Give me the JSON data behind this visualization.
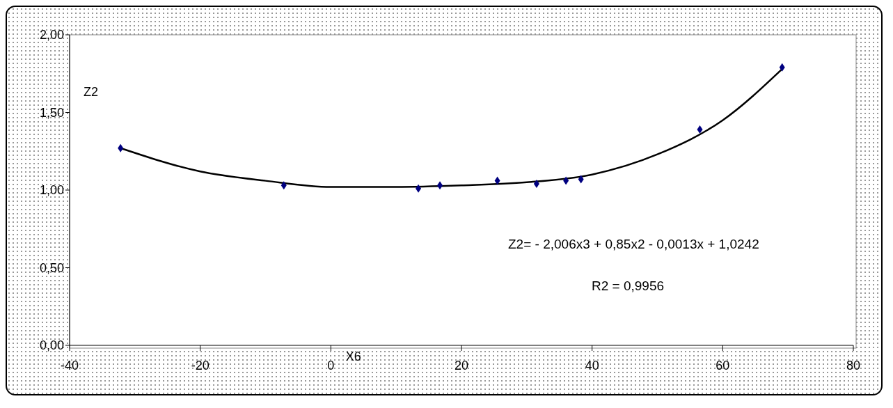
{
  "chart_data": {
    "type": "scatter",
    "xlabel": "X6",
    "ylabel": "Z2",
    "xlim": [
      -40,
      80
    ],
    "xticks": [
      -40,
      -20,
      0,
      20,
      40,
      60,
      80
    ],
    "ylim": [
      0,
      2
    ],
    "yticks": [
      {
        "value": 0,
        "label": "0,00"
      },
      {
        "value": 0.5,
        "label": "0,50"
      },
      {
        "value": 1,
        "label": "1,00"
      },
      {
        "value": 1.5,
        "label": "1,50"
      },
      {
        "value": 2,
        "label": "2,00"
      }
    ],
    "grid": false,
    "legend": false,
    "series": [
      {
        "color": "#000080",
        "marker": "diamond",
        "x": [
          -32.2,
          -7.2,
          13.4,
          16.7,
          25.5,
          31.5,
          36.0,
          38.3,
          56.5,
          69.1
        ],
        "values": [
          1.27,
          1.03,
          1.01,
          1.03,
          1.06,
          1.04,
          1.06,
          1.07,
          1.39,
          1.79
        ]
      },
      {
        "type": "line",
        "color": "#000000",
        "marker": "none",
        "line_style": "solid",
        "x": [
          -32.2,
          -20,
          -10,
          0,
          10,
          20,
          30,
          40,
          50,
          60,
          69.1
        ],
        "values": [
          1.27,
          1.12,
          1.06,
          1.02,
          1.02,
          1.03,
          1.05,
          1.1,
          1.23,
          1.45,
          1.78
        ]
      }
    ],
    "annotations": [
      "Z2=  - 2,006x3 + 0,85x2 - 0,0013x + 1,0242",
      "R2 = 0,9956"
    ]
  }
}
